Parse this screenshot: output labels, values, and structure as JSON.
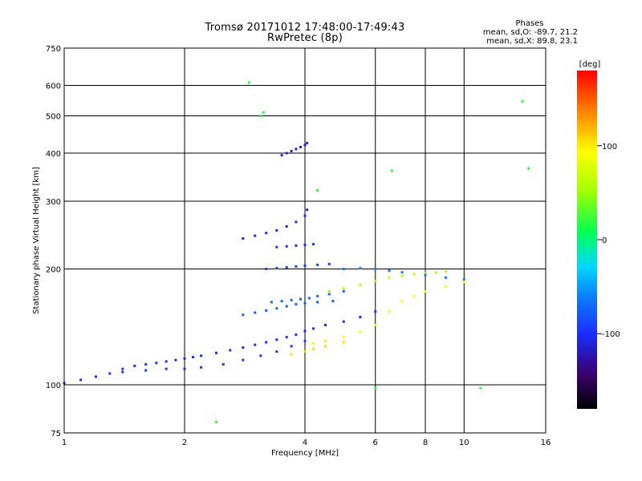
{
  "header": {
    "title_line1": "Tromsø 20171012 17:48:00-17:49:43",
    "title_line2": "RwPretec (8p)"
  },
  "stats": {
    "heading": "Phases",
    "line_o": "mean, sd,O: -89.7, 21.2",
    "line_x": "mean, sd,X:  89.8, 23.1"
  },
  "colorbar": {
    "unit_label": "[deg]",
    "ticks": [
      "100",
      "0",
      "-100"
    ],
    "range": [
      -180,
      180
    ]
  },
  "chart_data": {
    "type": "scatter",
    "title": "Tromsø 20171012 17:48:00-17:49:43",
    "subtitle": "RwPretec (8p)",
    "xlabel": "Frequency [MHz]",
    "ylabel": "Stationary phase Virtual Height [km]",
    "xscale": "log",
    "yscale": "log",
    "xlim": [
      1,
      16
    ],
    "ylim": [
      75,
      750
    ],
    "xticks": [
      "1",
      "2",
      "4",
      "6",
      "8",
      "10",
      "16"
    ],
    "xtick_values": [
      1,
      2,
      4,
      6,
      8,
      10,
      16
    ],
    "yticks": [
      "75",
      "100",
      "200",
      "300",
      "400",
      "500",
      "600",
      "750"
    ],
    "ytick_values": [
      75,
      100,
      200,
      300,
      400,
      500,
      600,
      750
    ],
    "grid": true,
    "series": [
      {
        "x": [
          1.0,
          1.1,
          1.2,
          1.3,
          1.4,
          1.5,
          1.6,
          1.7,
          1.8,
          1.9,
          2.0,
          2.1,
          2.2,
          2.4,
          2.6,
          2.8,
          3.0,
          3.2,
          3.4,
          3.6,
          3.8,
          4.0,
          4.2,
          4.5,
          5.0,
          5.5,
          6.0
        ],
        "y": [
          101,
          103,
          105,
          107,
          110,
          112,
          113,
          114,
          115,
          116,
          117,
          118,
          119,
          121,
          123,
          125,
          127,
          129,
          131,
          133,
          135,
          138,
          140,
          143,
          146,
          150,
          155
        ],
        "phase": -100
      },
      {
        "x": [
          1.4,
          1.6,
          1.8,
          2.0,
          2.2,
          2.5,
          2.8,
          3.1,
          3.4,
          3.7,
          4.0
        ],
        "y": [
          108,
          109,
          110,
          110,
          111,
          113,
          116,
          119,
          122,
          126,
          130
        ],
        "phase": -95
      },
      {
        "x": [
          2.8,
          3.0,
          3.2,
          3.4,
          3.6,
          3.8,
          4.0,
          4.05
        ],
        "y": [
          240,
          244,
          248,
          252,
          258,
          265,
          275,
          285
        ],
        "phase": -105
      },
      {
        "x": [
          3.5,
          3.6,
          3.7,
          3.8,
          3.9,
          4.0,
          4.05
        ],
        "y": [
          395,
          400,
          405,
          410,
          415,
          420,
          425
        ],
        "phase": -110
      },
      {
        "x": [
          2.8,
          3.0,
          3.2,
          3.4,
          3.6,
          3.8,
          4.0,
          4.3,
          4.7
        ],
        "y": [
          152,
          154,
          156,
          158,
          160,
          162,
          163,
          164,
          165
        ],
        "phase": -75
      },
      {
        "x": [
          3.3,
          3.5,
          3.7,
          3.9,
          4.1,
          4.3,
          4.6,
          5.0
        ],
        "y": [
          164,
          165,
          166,
          167,
          168,
          170,
          172,
          175
        ],
        "phase": -70
      },
      {
        "x": [
          3.2,
          3.4,
          3.6,
          3.8,
          4.0,
          4.3,
          4.6
        ],
        "y": [
          200,
          201,
          202,
          203,
          204,
          205,
          206
        ],
        "phase": -90
      },
      {
        "x": [
          3.4,
          3.6,
          3.8,
          4.0,
          4.2
        ],
        "y": [
          228,
          229,
          230,
          231,
          232
        ],
        "phase": -95
      },
      {
        "x": [
          4.2,
          4.5,
          5.0,
          5.5,
          6.0,
          6.5,
          7.0,
          7.5,
          8.0,
          9.0,
          10.0
        ],
        "y": [
          128,
          130,
          133,
          137,
          143,
          155,
          165,
          170,
          175,
          180,
          185
        ],
        "phase": 95
      },
      {
        "x": [
          4.6,
          5.0,
          5.5,
          6.0,
          6.5,
          7.0,
          7.5,
          8.0,
          8.5,
          9.0
        ],
        "y": [
          175,
          178,
          182,
          186,
          190,
          192,
          194,
          195,
          196,
          197
        ],
        "phase": 60
      },
      {
        "x": [
          5.0,
          5.5,
          6.0,
          6.5,
          7.0,
          8.0,
          9.0,
          10.0
        ],
        "y": [
          200,
          201,
          200,
          198,
          196,
          193,
          190,
          188
        ],
        "phase": -60
      },
      {
        "x": [
          3.7,
          4.0,
          4.2,
          4.5,
          5.0
        ],
        "y": [
          120,
          122,
          124,
          126,
          129
        ],
        "phase": 105
      },
      {
        "x": [
          3.1,
          3.15,
          4.3,
          6.6,
          14.0,
          2.9,
          14.5,
          2.4,
          6.0,
          11.0
        ],
        "y": [
          500,
          510,
          320,
          360,
          545,
          610,
          365,
          80,
          98,
          98
        ],
        "phase": 20
      }
    ]
  }
}
